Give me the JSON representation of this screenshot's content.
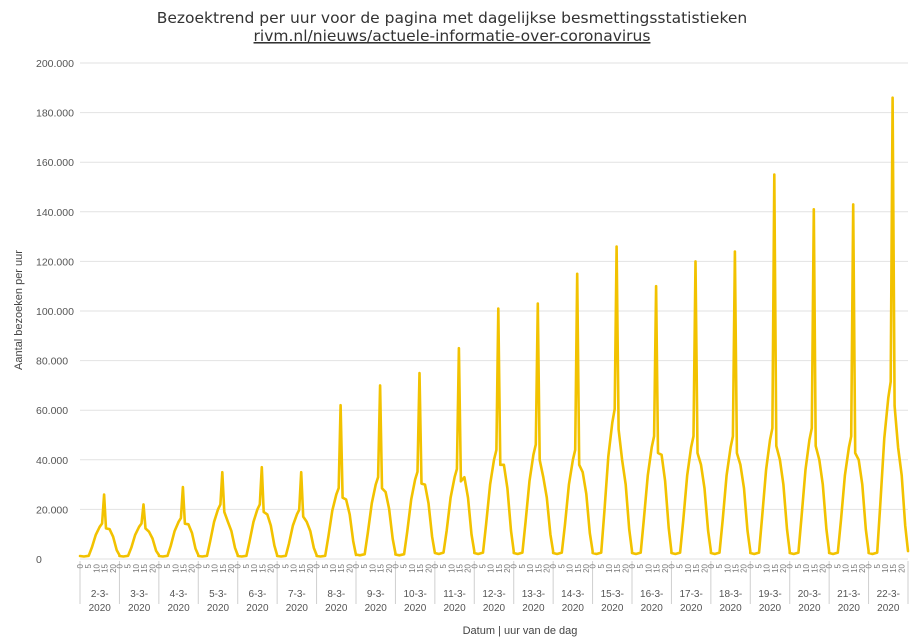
{
  "chart_data": {
    "type": "line",
    "title": "Bezoektrend per uur voor de pagina met dagelijkse besmettingsstatistieken",
    "subtitle": "rivm.nl/nieuws/actuele-informatie-over-coronavirus",
    "xlabel": "Datum | uur van de dag",
    "ylabel": "Aantal bezoeken per uur",
    "ylim": [
      0,
      200000
    ],
    "yticks": [
      {
        "value": 0,
        "label": "0"
      },
      {
        "value": 20000,
        "label": "20.000"
      },
      {
        "value": 40000,
        "label": "40.000"
      },
      {
        "value": 60000,
        "label": "60.000"
      },
      {
        "value": 80000,
        "label": "80.000"
      },
      {
        "value": 100000,
        "label": "100.000"
      },
      {
        "value": 120000,
        "label": "120.000"
      },
      {
        "value": 140000,
        "label": "140.000"
      },
      {
        "value": 160000,
        "label": "160.000"
      },
      {
        "value": 180000,
        "label": "180.000"
      },
      {
        "value": 200000,
        "label": "200.000"
      }
    ],
    "grid": true,
    "legend": "none",
    "hour_ticks": [
      "0",
      "5",
      "10",
      "15",
      "20"
    ],
    "days": [
      {
        "label": [
          "2-3-",
          "2020"
        ],
        "night": 1000,
        "day": 13000,
        "spike": 26000,
        "evening": 12000
      },
      {
        "label": [
          "3-3-",
          "2020"
        ],
        "night": 1000,
        "day": 13000,
        "spike": 22000,
        "evening": 11000
      },
      {
        "label": [
          "4-3-",
          "2020"
        ],
        "night": 1000,
        "day": 15000,
        "spike": 29000,
        "evening": 14000
      },
      {
        "label": [
          "5-3-",
          "2020"
        ],
        "night": 1000,
        "day": 20000,
        "spike": 35000,
        "evening": 15000
      },
      {
        "label": [
          "6-3-",
          "2020"
        ],
        "night": 1000,
        "day": 20000,
        "spike": 37000,
        "evening": 18000
      },
      {
        "label": [
          "7-3-",
          "2020"
        ],
        "night": 1000,
        "day": 18000,
        "spike": 35000,
        "evening": 15000
      },
      {
        "label": [
          "8-3-",
          "2020"
        ],
        "night": 1000,
        "day": 26000,
        "spike": 62000,
        "evening": 24000
      },
      {
        "label": [
          "9-3-",
          "2020"
        ],
        "night": 1500,
        "day": 30000,
        "spike": 70000,
        "evening": 27000
      },
      {
        "label": [
          "10-3-",
          "2020"
        ],
        "night": 1500,
        "day": 32000,
        "spike": 75000,
        "evening": 30000
      },
      {
        "label": [
          "11-3-",
          "2020"
        ],
        "night": 2000,
        "day": 33000,
        "spike": 85000,
        "evening": 33000
      },
      {
        "label": [
          "12-3-",
          "2020"
        ],
        "night": 2000,
        "day": 40000,
        "spike": 101000,
        "evening": 38000
      },
      {
        "label": [
          "13-3-",
          "2020"
        ],
        "night": 2000,
        "day": 42000,
        "spike": 103000,
        "evening": 33000
      },
      {
        "label": [
          "14-3-",
          "2020"
        ],
        "night": 2000,
        "day": 40000,
        "spike": 115000,
        "evening": 35000
      },
      {
        "label": [
          "15-3-",
          "2020"
        ],
        "night": 2000,
        "day": 55000,
        "spike": 126000,
        "evening": 40000
      },
      {
        "label": [
          "16-3-",
          "2020"
        ],
        "night": 2000,
        "day": 45000,
        "spike": 110000,
        "evening": 42000
      },
      {
        "label": [
          "17-3-",
          "2020"
        ],
        "night": 2000,
        "day": 45000,
        "spike": 120000,
        "evening": 38000
      },
      {
        "label": [
          "18-3-",
          "2020"
        ],
        "night": 2000,
        "day": 45000,
        "spike": 124000,
        "evening": 38000
      },
      {
        "label": [
          "19-3-",
          "2020"
        ],
        "night": 2000,
        "day": 48000,
        "spike": 155000,
        "evening": 40000
      },
      {
        "label": [
          "20-3-",
          "2020"
        ],
        "night": 2000,
        "day": 48000,
        "spike": 141000,
        "evening": 40000
      },
      {
        "label": [
          "21-3-",
          "2020"
        ],
        "night": 2000,
        "day": 45000,
        "spike": 143000,
        "evening": 40000
      },
      {
        "label": [
          "22-3-",
          "2020"
        ],
        "night": 2000,
        "day": 65000,
        "spike": 186000,
        "evening": 45000
      }
    ],
    "color": "#f2c200"
  }
}
